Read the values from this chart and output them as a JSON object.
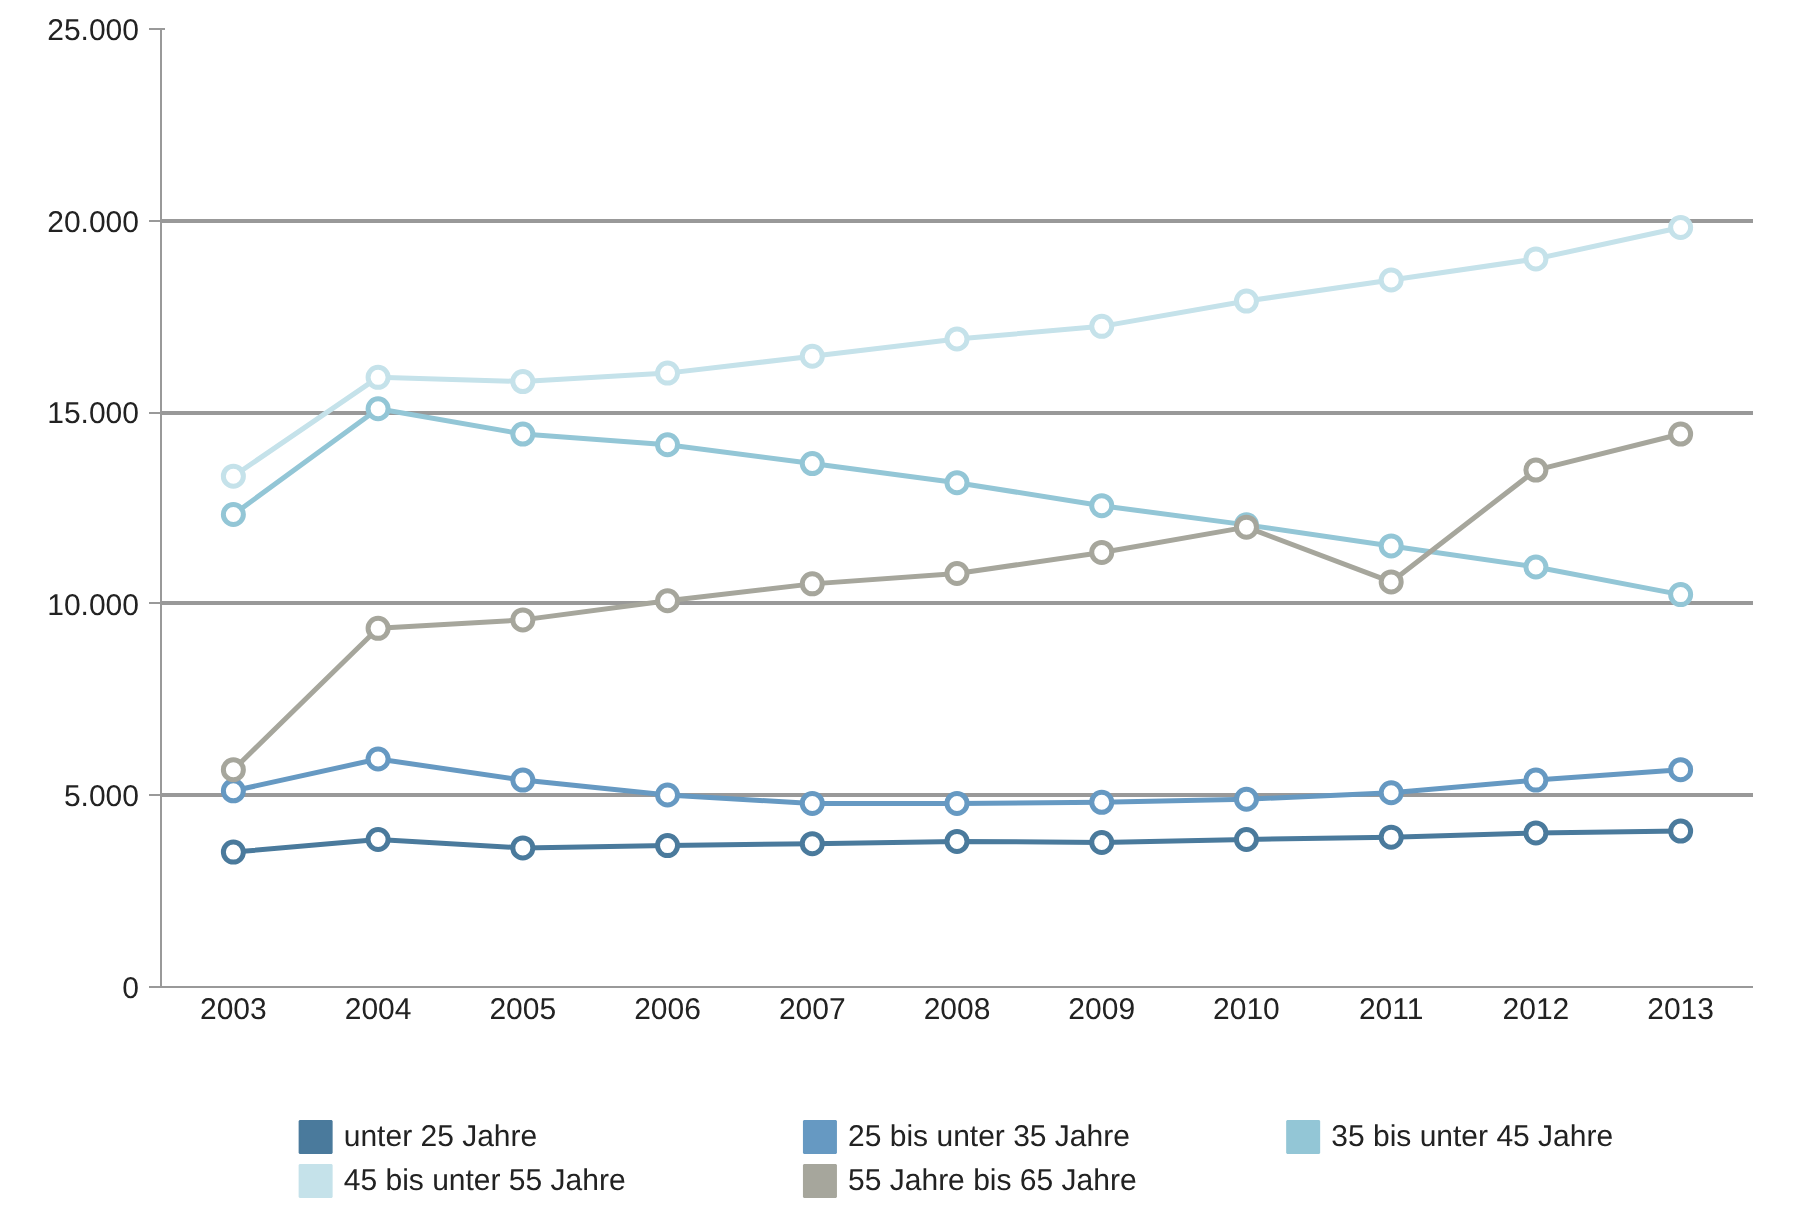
{
  "chart_data": {
    "type": "line",
    "categories": [
      "2003",
      "2004",
      "2005",
      "2006",
      "2007",
      "2008",
      "2009",
      "2010",
      "2011",
      "2012",
      "2013"
    ],
    "series": [
      {
        "name": "unter 25 Jahre",
        "color": "#4a7a9c",
        "values": [
          3520,
          3850,
          3630,
          3690,
          3740,
          3800,
          3770,
          3850,
          3910,
          4020,
          4070
        ]
      },
      {
        "name": "25 bis unter 35 Jahre",
        "color": "#6699c2",
        "values": [
          5120,
          5950,
          5400,
          5010,
          4790,
          4790,
          4820,
          4900,
          5070,
          5400,
          5670
        ]
      },
      {
        "name": "35 bis unter 45 Jahre",
        "color": "#93c6d6",
        "values": [
          12330,
          15090,
          14430,
          14150,
          13660,
          13160,
          12560,
          12060,
          11510,
          10960,
          10240
        ]
      },
      {
        "name": "45 bis unter 55 Jahre",
        "color": "#c5e2ea",
        "values": [
          13330,
          15910,
          15800,
          16020,
          16460,
          16910,
          17240,
          17900,
          18450,
          19000,
          19820
        ]
      },
      {
        "name": "55 Jahre bis 65 Jahre",
        "color": "#a6a69c",
        "values": [
          5670,
          9360,
          9580,
          10080,
          10520,
          10790,
          11340,
          12000,
          10570,
          13490,
          14430
        ]
      }
    ],
    "ylim": [
      0,
      25000
    ],
    "yticks": [
      0,
      {
        "value": 5000,
        "label": "5.000"
      },
      {
        "value": 10000,
        "label": "10.000"
      },
      {
        "value": 15000,
        "label": "15.000"
      },
      {
        "value": 20000,
        "label": "20.000"
      },
      {
        "value": 25000,
        "label": "25.000"
      }
    ],
    "grid": "y",
    "legend": "bottom",
    "marker": "circle",
    "line_style": "solid"
  }
}
